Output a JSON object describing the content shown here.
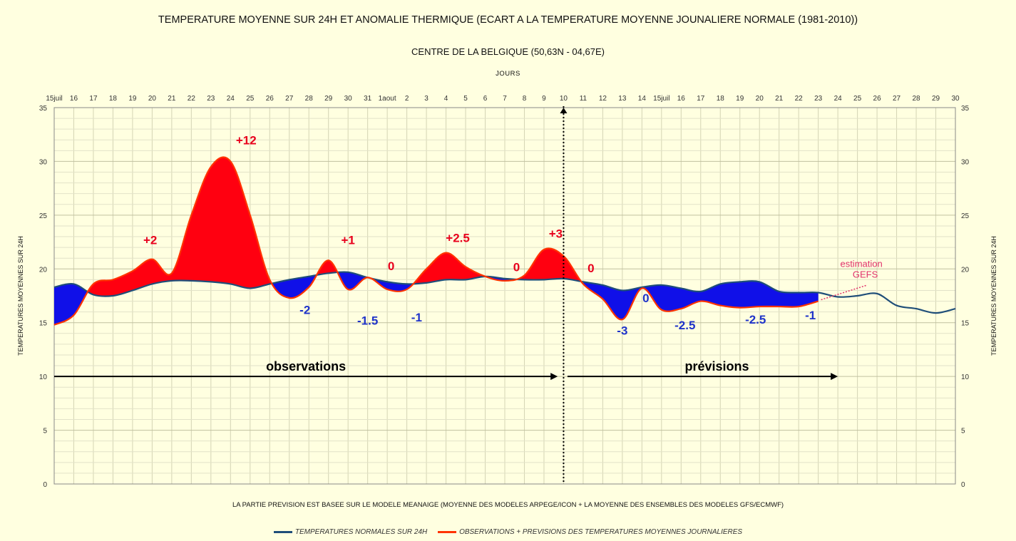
{
  "title": "TEMPERATURE MOYENNE SUR 24H ET  ANOMALIE THERMIQUE (ECART A LA TEMPERATURE MOYENNE JOUNALIERE NORMALE (1981-2010))",
  "subtitle": "CENTRE DE LA BELGIQUE (50,63N - 04,67E)",
  "note": "LA PARTIE PREVISION EST BASEE SUR LE  MODELE MEANAIGE (MOYENNE DES MODELES  ARPEGE/ICON + LA MOYENNE DES ENSEMBLES DES MODELES GFS/ECMWF)",
  "chart_data": {
    "type": "area",
    "title": "TEMPERATURE MOYENNE SUR 24H ET  ANOMALIE THERMIQUE (ECART A LA TEMPERATURE MOYENNE JOUNALIERE NORMALE (1981-2010))",
    "subtitle": "CENTRE DE LA BELGIQUE (50,63N - 04,67E)",
    "xlabel": "JOURS",
    "ylabel": "TEMPERATURES MOYENNES SUR 24H",
    "ylim": [
      0,
      35
    ],
    "yticks": [
      0,
      5,
      10,
      15,
      20,
      25,
      30,
      35
    ],
    "grid": true,
    "x_tick_labels": [
      "15juil",
      "16",
      "17",
      "18",
      "19",
      "20",
      "21",
      "22",
      "23",
      "24",
      "25",
      "26",
      "27",
      "28",
      "29",
      "30",
      "31",
      "1aout",
      "2",
      "3",
      "4",
      "5",
      "6",
      "7",
      "8",
      "9",
      "10",
      "11",
      "12",
      "13",
      "14",
      "15juil",
      "16",
      "17",
      "18",
      "19",
      "20",
      "21",
      "22",
      "23",
      "24",
      "25",
      "26",
      "27",
      "28",
      "29",
      "30"
    ],
    "series": [
      {
        "name": "TEMPERATURES NORMALES SUR 24H",
        "color": "#1f4e79",
        "values": [
          18.3,
          18.6,
          17.6,
          17.5,
          18.0,
          18.6,
          18.9,
          18.9,
          18.8,
          18.6,
          18.2,
          18.6,
          19.0,
          19.3,
          19.6,
          19.7,
          19.2,
          18.8,
          18.6,
          18.7,
          19.0,
          19.0,
          19.3,
          19.1,
          19.0,
          19.0,
          19.1,
          18.8,
          18.5,
          18.0,
          18.3,
          18.5,
          18.2,
          17.9,
          18.6,
          18.8,
          18.8,
          17.9,
          17.8,
          17.8,
          17.4,
          17.5,
          17.7,
          16.6,
          16.3,
          15.9,
          16.3
        ]
      },
      {
        "name": "OBSERVATIONS + PREVISIONS DES TEMPERATURES MOYENNES JOURNALIERES",
        "color": "#ff3300",
        "values": [
          14.8,
          15.7,
          18.6,
          19.0,
          19.8,
          20.9,
          19.6,
          25.0,
          29.5,
          30.0,
          25.0,
          19.0,
          17.3,
          18.3,
          20.8,
          18.1,
          19.2,
          18.1,
          18.1,
          20.0,
          21.5,
          20.2,
          19.3,
          18.9,
          19.4,
          21.8,
          21.2,
          18.6,
          17.2,
          15.3,
          18.2,
          16.2,
          16.3,
          17.0,
          16.6,
          16.4,
          16.5,
          16.5,
          16.5,
          17.0
        ]
      }
    ],
    "annotations": [
      {
        "text": "+2",
        "day": 4.9,
        "temp": 22.3,
        "color": "#e8001c"
      },
      {
        "text": "+12",
        "day": 9.8,
        "temp": 31.6,
        "color": "#e8001c"
      },
      {
        "text": "-2",
        "day": 12.8,
        "temp": 15.8,
        "color": "#1f33c9"
      },
      {
        "text": "+1",
        "day": 15.0,
        "temp": 22.3,
        "color": "#e8001c"
      },
      {
        "text": "-1.5",
        "day": 16.0,
        "temp": 14.8,
        "color": "#1f33c9"
      },
      {
        "text": "0",
        "day": 17.2,
        "temp": 19.9,
        "color": "#e8001c"
      },
      {
        "text": "-1",
        "day": 18.5,
        "temp": 15.1,
        "color": "#1f33c9"
      },
      {
        "text": "+2.5",
        "day": 20.6,
        "temp": 22.5,
        "color": "#e8001c"
      },
      {
        "text": "0",
        "day": 23.6,
        "temp": 19.8,
        "color": "#e8001c"
      },
      {
        "text": "+3",
        "day": 25.6,
        "temp": 22.9,
        "color": "#e8001c"
      },
      {
        "text": "0",
        "day": 27.4,
        "temp": 19.7,
        "color": "#e8001c"
      },
      {
        "text": "-3",
        "day": 29.0,
        "temp": 13.9,
        "color": "#1f33c9"
      },
      {
        "text": "0",
        "day": 30.2,
        "temp": 16.9,
        "color": "#1f33c9"
      },
      {
        "text": "-2.5",
        "day": 32.2,
        "temp": 14.4,
        "color": "#1f33c9"
      },
      {
        "text": "-2.5",
        "day": 35.8,
        "temp": 14.9,
        "color": "#1f33c9"
      },
      {
        "text": "-1",
        "day": 38.6,
        "temp": 15.3,
        "color": "#1f33c9"
      },
      {
        "text": "estimation",
        "day": 41.2,
        "temp": 20.2,
        "color": "#e0306a"
      },
      {
        "text": "GEFS",
        "day": 41.4,
        "temp": 19.2,
        "color": "#e0306a"
      }
    ],
    "phases": [
      {
        "label": "observations",
        "from_day": 0,
        "to_day": 25.7,
        "temp": 10
      },
      {
        "label": "prévisions",
        "from_day": 26.2,
        "to_day": 40.0,
        "temp": 10
      }
    ],
    "divider_day": 26.0
  }
}
